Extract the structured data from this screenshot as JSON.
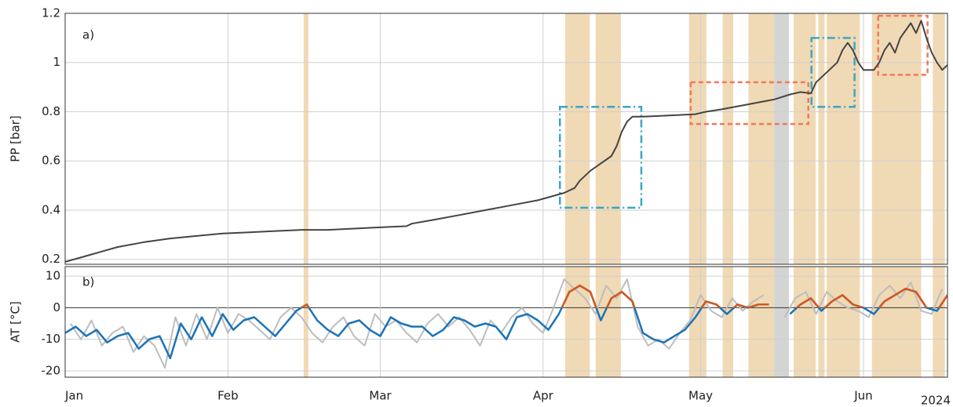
{
  "chart_data": [
    {
      "type": "line",
      "panel_label": "a)",
      "ylabel": "PP [bar]",
      "xlim": [
        0,
        168
      ],
      "ylim": [
        0.18,
        1.2
      ],
      "yticks": [
        0.2,
        0.4,
        0.6,
        0.8,
        1,
        1.2
      ],
      "grid": true,
      "shaded_spans": [
        {
          "x": [
            45.4,
            46.3
          ],
          "color": "#f0d9b5"
        },
        {
          "x": [
            95.2,
            99.9
          ],
          "color": "#f0d9b5"
        },
        {
          "x": [
            101,
            105.8
          ],
          "color": "#f0d9b5"
        },
        {
          "x": [
            118.8,
            122.1
          ],
          "color": "#f0d9b5"
        },
        {
          "x": [
            125.2,
            127.2
          ],
          "color": "#f0d9b5"
        },
        {
          "x": [
            130.1,
            135
          ],
          "color": "#f0d9b5"
        },
        {
          "x": [
            135,
            137.8
          ],
          "color": "#d4d4d4"
        },
        {
          "x": [
            138.7,
            142.9
          ],
          "color": "#f0d9b5"
        },
        {
          "x": [
            143.4,
            144.6
          ],
          "color": "#f0d9b5"
        },
        {
          "x": [
            145,
            151.3
          ],
          "color": "#f0d9b5"
        },
        {
          "x": [
            153.6,
            163
          ],
          "color": "#f0d9b5"
        },
        {
          "x": [
            165.2,
            167.5
          ],
          "color": "#f0d9b5"
        }
      ],
      "boxes": [
        {
          "x": [
            94.2,
            109.7
          ],
          "y": [
            0.41,
            0.82
          ],
          "color": "#3aa6c4",
          "dash": "10 4 2 4"
        },
        {
          "x": [
            119.1,
            141.5
          ],
          "y": [
            0.75,
            0.92
          ],
          "color": "#f07a5a",
          "dash": "6 4"
        },
        {
          "x": [
            142.1,
            150.3
          ],
          "y": [
            0.82,
            1.1
          ],
          "color": "#3aa6c4",
          "dash": "10 4 2 4"
        },
        {
          "x": [
            154.8,
            164.2
          ],
          "y": [
            0.95,
            1.19
          ],
          "color": "#f07a5a",
          "dash": "6 4"
        }
      ],
      "series": [
        {
          "color": "#444444",
          "x": [
            0,
            5,
            10,
            15,
            20,
            25,
            30,
            35,
            40,
            45,
            50,
            55,
            60,
            65,
            66,
            70,
            75,
            80,
            85,
            90,
            95,
            97,
            98,
            100,
            102,
            104,
            105,
            106,
            107,
            108,
            110,
            115,
            120,
            122,
            125,
            130,
            135,
            138,
            140,
            142,
            143,
            145,
            147,
            148,
            149,
            150,
            151,
            152,
            154,
            155,
            156,
            157,
            158,
            159,
            160,
            161,
            162,
            163,
            164,
            165,
            166,
            167,
            168
          ],
          "values": [
            0.19,
            0.22,
            0.25,
            0.27,
            0.285,
            0.295,
            0.305,
            0.31,
            0.315,
            0.32,
            0.32,
            0.325,
            0.33,
            0.335,
            0.345,
            0.36,
            0.38,
            0.4,
            0.42,
            0.44,
            0.47,
            0.49,
            0.52,
            0.56,
            0.59,
            0.62,
            0.66,
            0.72,
            0.76,
            0.78,
            0.78,
            0.785,
            0.79,
            0.8,
            0.81,
            0.83,
            0.85,
            0.87,
            0.88,
            0.875,
            0.92,
            0.96,
            1,
            1.05,
            1.08,
            1.05,
            1,
            0.97,
            0.97,
            1,
            1.05,
            1.08,
            1.04,
            1.1,
            1.13,
            1.16,
            1.12,
            1.17,
            1.1,
            1.04,
            1,
            0.97,
            0.99
          ]
        }
      ]
    },
    {
      "type": "line",
      "panel_label": "b)",
      "ylabel": "AT [°C]",
      "xlim": [
        0,
        168
      ],
      "ylim": [
        -22,
        13
      ],
      "yticks": [
        -20,
        -10,
        0,
        10
      ],
      "grid": true,
      "year_label": "2024",
      "xticks": [
        {
          "value": 0,
          "label": "Jan"
        },
        {
          "value": 31,
          "label": "Feb"
        },
        {
          "value": 60,
          "label": "Mar"
        },
        {
          "value": 91,
          "label": "Apr"
        },
        {
          "value": 121,
          "label": "May"
        },
        {
          "value": 152,
          "label": "Jun"
        }
      ],
      "series": [
        {
          "color": "#bdbdbd",
          "x": [
            1,
            3,
            5,
            7,
            9,
            11,
            13,
            15,
            17,
            19,
            21,
            23,
            25,
            27,
            29,
            31,
            33,
            35,
            37,
            39,
            41,
            43,
            45,
            47,
            49,
            51,
            53,
            55,
            57,
            59,
            61,
            63,
            65,
            67,
            69,
            71,
            73,
            75,
            77,
            79,
            81,
            83,
            85,
            87,
            89,
            91,
            93,
            95,
            97,
            99,
            101,
            103,
            105,
            107,
            109,
            111,
            113,
            115,
            117,
            119,
            121,
            123,
            125,
            127,
            129,
            131,
            133,
            135,
            137,
            139,
            141,
            143,
            145,
            147,
            149,
            151,
            153,
            155,
            157,
            159,
            161,
            163,
            165,
            167
          ],
          "values": [
            -5,
            -10,
            -4,
            -12,
            -8,
            -6,
            -14,
            -9,
            -12,
            -19,
            -3,
            -12,
            -2,
            -10,
            0,
            -8,
            -2,
            -4,
            -7,
            -10,
            -3,
            0,
            -3,
            -8,
            -11,
            -6,
            -3,
            -9,
            -12,
            -2,
            -6,
            -4,
            -8,
            -11,
            -5,
            -2,
            -6,
            -3,
            -7,
            -12,
            -4,
            -8,
            -3,
            0,
            -5,
            -8,
            0,
            9,
            6,
            3,
            -2,
            7,
            3,
            9,
            -6,
            -12,
            -10,
            -13,
            -8,
            -4,
            4,
            -1,
            -3,
            3,
            -1,
            2,
            4,
            null,
            -3,
            3,
            5,
            -2,
            5,
            2,
            0,
            -1,
            -3,
            4,
            7,
            3,
            8,
            -1,
            -2,
            6
          ]
        },
        {
          "color": "#1a73b8",
          "color_above_zero": "#d4581e",
          "x": [
            0,
            2,
            4,
            6,
            8,
            10,
            12,
            14,
            16,
            18,
            20,
            22,
            24,
            26,
            28,
            30,
            32,
            34,
            36,
            38,
            40,
            42,
            44,
            46,
            48,
            50,
            52,
            54,
            56,
            58,
            60,
            62,
            64,
            66,
            68,
            70,
            72,
            74,
            76,
            78,
            80,
            82,
            84,
            86,
            88,
            90,
            92,
            94,
            96,
            98,
            100,
            102,
            104,
            106,
            108,
            110,
            112,
            114,
            116,
            118,
            120,
            122,
            124,
            126,
            128,
            130,
            132,
            134,
            136,
            138,
            140,
            142,
            144,
            146,
            148,
            150,
            152,
            154,
            156,
            158,
            160,
            162,
            164,
            166,
            168
          ],
          "values": [
            -8,
            -6,
            -9,
            -7,
            -11,
            -9,
            -8,
            -13,
            -10,
            -9,
            -16,
            -5,
            -10,
            -3,
            -9,
            -2,
            -7,
            -4,
            -3,
            -6,
            -9,
            -5,
            -1,
            1,
            -4,
            -7,
            -9,
            -5,
            -4,
            -7,
            -9,
            -3,
            -5,
            -6,
            -6,
            -9,
            -7,
            -3,
            -4,
            -6,
            -5,
            -6,
            -10,
            -3,
            -2,
            -4,
            -7,
            -2,
            5,
            7,
            5,
            -4,
            3,
            5,
            2,
            -8,
            -10,
            -11,
            -9,
            -7,
            -3,
            2,
            1,
            -2,
            1,
            0,
            1,
            1,
            null,
            -2,
            1,
            3,
            -1,
            2,
            4,
            1,
            0,
            -2,
            2,
            4,
            6,
            5,
            0,
            -1,
            4
          ]
        }
      ]
    }
  ]
}
